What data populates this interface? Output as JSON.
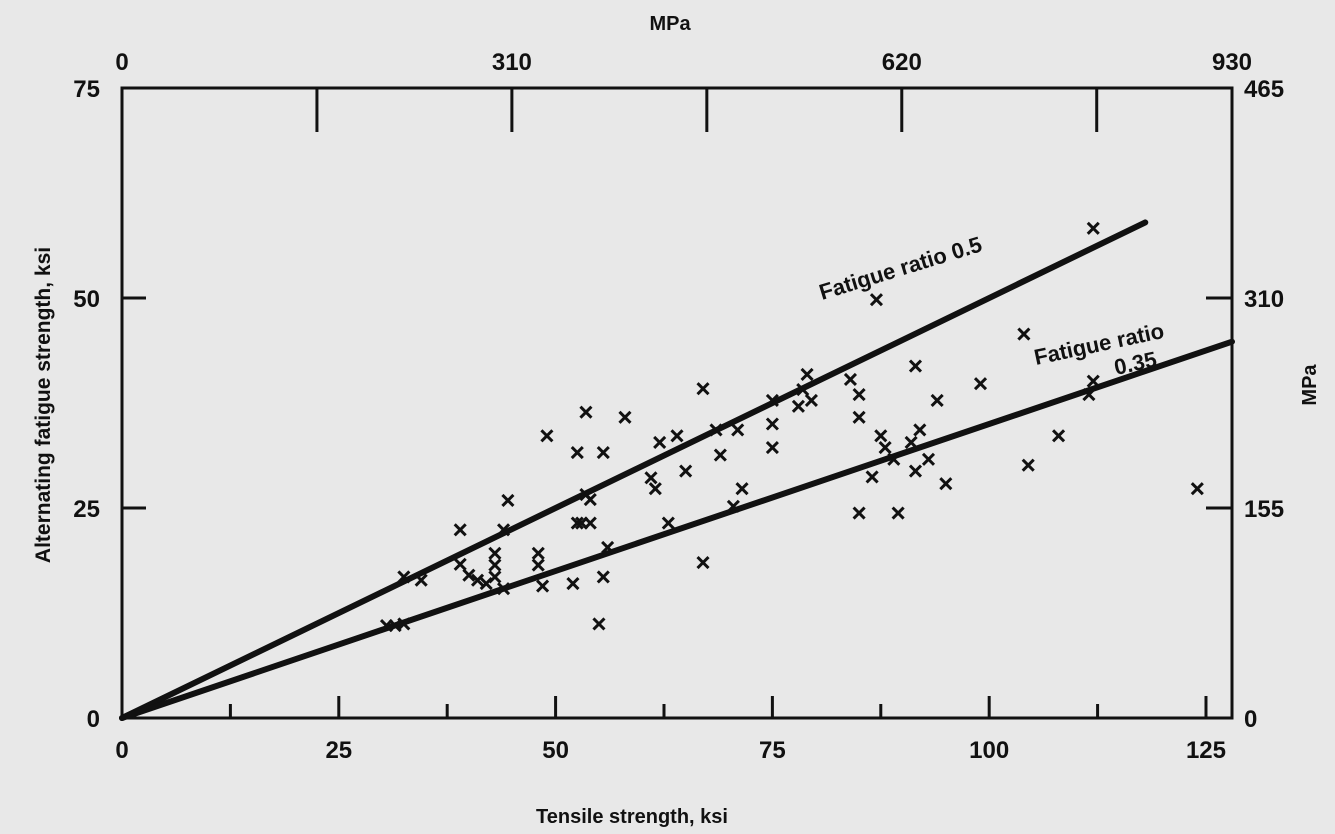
{
  "chart_data": {
    "type": "scatter",
    "title": "",
    "xlabel": "Tensile strength, ksi",
    "ylabel": "Alternating fatigue strength, ksi",
    "top_axis_label": "MPa",
    "right_axis_label": "MPa",
    "xlim": [
      0,
      128
    ],
    "ylim": [
      0,
      75
    ],
    "x_ticks": [
      "0",
      "25",
      "50",
      "75",
      "100",
      "125"
    ],
    "y_ticks": [
      "0",
      "25",
      "50",
      "75"
    ],
    "top_ticks": [
      "0",
      "310",
      "620",
      "930"
    ],
    "right_ticks": [
      "0",
      "155",
      "310",
      "465"
    ],
    "grid": false,
    "lines": [
      {
        "label": "Fatigue ratio 0.5",
        "slope": 0.5,
        "x_range": [
          0,
          118
        ]
      },
      {
        "label": "Fatigue ratio 0.35",
        "label_line1": "Fatigue ratio",
        "label_line2": "0.35",
        "slope": 0.35,
        "x_range": [
          0,
          128
        ]
      }
    ],
    "points": [
      [
        30.5,
        11
      ],
      [
        31.5,
        11
      ],
      [
        32.5,
        11.2
      ],
      [
        32.5,
        16.8
      ],
      [
        34.5,
        16.4
      ],
      [
        39,
        22.4
      ],
      [
        39,
        18.3
      ],
      [
        40,
        17
      ],
      [
        41,
        16.4
      ],
      [
        42,
        16
      ],
      [
        43,
        19.6
      ],
      [
        43,
        18.2
      ],
      [
        43,
        16.8
      ],
      [
        44,
        15.4
      ],
      [
        44,
        22.4
      ],
      [
        44.5,
        25.9
      ],
      [
        48,
        19.6
      ],
      [
        48,
        18.2
      ],
      [
        48.5,
        15.7
      ],
      [
        49,
        33.6
      ],
      [
        52,
        16
      ],
      [
        52.5,
        23.2
      ],
      [
        52.5,
        31.6
      ],
      [
        53,
        23.2
      ],
      [
        53.5,
        36.4
      ],
      [
        53.5,
        26.6
      ],
      [
        54,
        23.2
      ],
      [
        54,
        26
      ],
      [
        55,
        11.2
      ],
      [
        55.5,
        31.6
      ],
      [
        55.5,
        16.8
      ],
      [
        56,
        20.3
      ],
      [
        58,
        35.8
      ],
      [
        61,
        28.6
      ],
      [
        61.5,
        27.3
      ],
      [
        62,
        32.8
      ],
      [
        63,
        23.2
      ],
      [
        64,
        33.6
      ],
      [
        65,
        29.4
      ],
      [
        67,
        39.2
      ],
      [
        67,
        18.5
      ],
      [
        68.5,
        34.3
      ],
      [
        69,
        31.3
      ],
      [
        70.5,
        25.2
      ],
      [
        71,
        34.3
      ],
      [
        71.5,
        27.3
      ],
      [
        75,
        37.8
      ],
      [
        75,
        35
      ],
      [
        75,
        32.2
      ],
      [
        78,
        37.1
      ],
      [
        78.5,
        39.1
      ],
      [
        79,
        40.9
      ],
      [
        79.5,
        37.8
      ],
      [
        84,
        40.3
      ],
      [
        85,
        38.5
      ],
      [
        85,
        35.8
      ],
      [
        85,
        24.4
      ],
      [
        86.5,
        28.7
      ],
      [
        87,
        49.8
      ],
      [
        87.5,
        33.6
      ],
      [
        88,
        32.2
      ],
      [
        89,
        30.8
      ],
      [
        89.5,
        24.4
      ],
      [
        91,
        32.8
      ],
      [
        91.5,
        29.4
      ],
      [
        91.5,
        41.9
      ],
      [
        92,
        34.3
      ],
      [
        93,
        30.8
      ],
      [
        94,
        37.8
      ],
      [
        95,
        27.9
      ],
      [
        99,
        39.8
      ],
      [
        104,
        45.7
      ],
      [
        104.5,
        30.1
      ],
      [
        108,
        33.6
      ],
      [
        111.5,
        38.5
      ],
      [
        112,
        40.1
      ],
      [
        112,
        58.3
      ],
      [
        124,
        27.3
      ]
    ]
  }
}
